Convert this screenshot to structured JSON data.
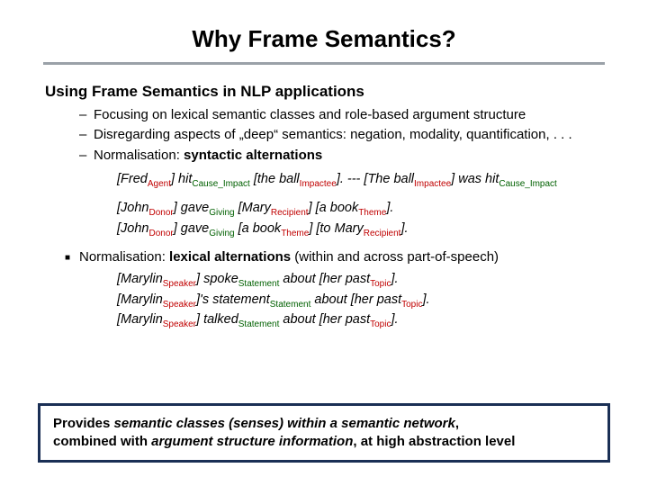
{
  "colors": {
    "role_subscript": "#c00000",
    "frame_subscript": "#006000",
    "hr": "#9aa1a8",
    "box_border": "#1a2f55",
    "text": "#000000",
    "background": "#ffffff"
  },
  "typography": {
    "title_fontsize": 26,
    "body_fontsize": 15,
    "example_fontsize": 14.5,
    "subscript_fontsize": 10,
    "font_family": "Arial"
  },
  "title": "Why Frame Semantics?",
  "subheading": "Using Frame Semantics in NLP applications",
  "bullets": [
    "Focusing on lexical semantic classes and role-based argument structure",
    "Disregarding aspects of „deep“ semantics: negation, modality, quantification, . . .",
    "Normalisation: "
  ],
  "bullet3_bold": "syntactic alternations",
  "examples1": [
    [
      {
        "t": "[Fred",
        "i": true
      },
      {
        "t": "Agent",
        "sub": "role"
      },
      {
        "t": "] hit",
        "i": true
      },
      {
        "t": "Cause_Impact",
        "sub": "frame"
      },
      {
        "t": " [the ball",
        "i": true
      },
      {
        "t": "Impactee",
        "sub": "role"
      },
      {
        "t": "]. --- [The ball",
        "i": true
      },
      {
        "t": "Impactee",
        "sub": "role"
      },
      {
        "t": "] was hit",
        "i": true
      },
      {
        "t": "Cause_Impact",
        "sub": "frame"
      }
    ],
    [
      {
        "t": "[John",
        "i": true
      },
      {
        "t": "Donor",
        "sub": "role"
      },
      {
        "t": "] gave",
        "i": true
      },
      {
        "t": "Giving",
        "sub": "frame"
      },
      {
        "t": " [Mary",
        "i": true
      },
      {
        "t": "Recipient",
        "sub": "role"
      },
      {
        "t": "] [a book",
        "i": true
      },
      {
        "t": "Theme",
        "sub": "role"
      },
      {
        "t": "].",
        "i": true
      }
    ],
    [
      {
        "t": "[John",
        "i": true
      },
      {
        "t": "Donor",
        "sub": "role"
      },
      {
        "t": "] gave",
        "i": true
      },
      {
        "t": "Giving",
        "sub": "frame"
      },
      {
        "t": " [a book",
        "i": true
      },
      {
        "t": "Theme",
        "sub": "role"
      },
      {
        "t": "] [to Mary",
        "i": true
      },
      {
        "t": "Recipient",
        "sub": "role"
      },
      {
        "t": "].",
        "i": true
      }
    ]
  ],
  "square_bullet": {
    "lead": "Normalisation: ",
    "bold": "lexical alternations",
    "tail": " (within and across part-of-speech)"
  },
  "examples2": [
    [
      {
        "t": "[Marylin",
        "i": true
      },
      {
        "t": "Speaker",
        "sub": "role"
      },
      {
        "t": "] spoke",
        "i": true
      },
      {
        "t": "Statement",
        "sub": "frame"
      },
      {
        "t": " about [her past",
        "i": true
      },
      {
        "t": "Topic",
        "sub": "role"
      },
      {
        "t": "].",
        "i": true
      }
    ],
    [
      {
        "t": "[Marylin",
        "i": true
      },
      {
        "t": "Speaker",
        "sub": "role"
      },
      {
        "t": "]'s statement",
        "i": true
      },
      {
        "t": "Statement",
        "sub": "frame"
      },
      {
        "t": " about [her past",
        "i": true
      },
      {
        "t": "Topic",
        "sub": "role"
      },
      {
        "t": "].",
        "i": true
      }
    ],
    [
      {
        "t": "[Marylin",
        "i": true
      },
      {
        "t": "Speaker",
        "sub": "role"
      },
      {
        "t": "] talked",
        "i": true
      },
      {
        "t": "Statement",
        "sub": "frame"
      },
      {
        "t": " about [her past",
        "i": true
      },
      {
        "t": "Topic",
        "sub": "role"
      },
      {
        "t": "].",
        "i": true
      }
    ]
  ],
  "bottom_box": {
    "line1_a": "Provides ",
    "line1_em": "semantic classes (senses) within a semantic network",
    "line1_b": ",",
    "line2_a": "combined with ",
    "line2_em": "argument structure information",
    "line2_b": ", at high abstraction level"
  }
}
